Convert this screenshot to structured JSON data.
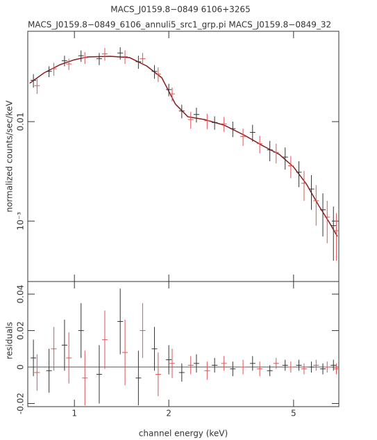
{
  "chart_data": [
    {
      "type": "errorbar",
      "title": "MACS_J0159.8−0849 6106+3265",
      "subtitle": "MACS_J0159.8−0849_6106_annuli5_src1_grp.pi MACS_J0159.8−0849_32",
      "ylabel": "normalized counts/sec/keV",
      "xscale": "log",
      "yscale": "log",
      "xlim": [
        0.71,
        6.97
      ],
      "xticks": [
        1,
        2,
        5
      ],
      "ylim": [
        0.000247,
        0.081
      ],
      "yticks": [
        0.01,
        {
          "value": 0.001,
          "label": "10⁻³"
        }
      ],
      "series": [
        {
          "color": "#333333",
          "x": [
            0.74,
            0.83,
            0.93,
            1.05,
            1.2,
            1.4,
            1.6,
            1.8,
            2.0,
            2.2,
            2.45,
            2.8,
            3.2,
            3.7,
            4.2,
            4.7,
            5.2,
            5.7,
            6.2,
            6.7
          ],
          "values": [
            0.026,
            0.032,
            0.041,
            0.046,
            0.043,
            0.049,
            0.04,
            0.032,
            0.021,
            0.0128,
            0.0118,
            0.0098,
            0.0085,
            0.0078,
            0.0052,
            0.0044,
            0.0031,
            0.0021,
            0.0013,
            0.0009
          ],
          "errors": [
            0.004,
            0.004,
            0.005,
            0.006,
            0.006,
            0.007,
            0.006,
            0.005,
            0.003,
            0.002,
            0.002,
            0.0015,
            0.0015,
            0.0015,
            0.0012,
            0.0011,
            0.0009,
            0.0008,
            0.0006,
            0.0005
          ]
        },
        {
          "color": "#e05050",
          "x": [
            0.76,
            0.86,
            0.96,
            1.08,
            1.25,
            1.45,
            1.65,
            1.85,
            2.05,
            2.35,
            2.65,
            3.0,
            3.45,
            3.9,
            4.4,
            4.9,
            5.4,
            5.9,
            6.4,
            6.85
          ],
          "values": [
            0.023,
            0.034,
            0.038,
            0.044,
            0.048,
            0.045,
            0.043,
            0.03,
            0.019,
            0.0105,
            0.0102,
            0.0095,
            0.0071,
            0.006,
            0.0049,
            0.0036,
            0.0024,
            0.0016,
            0.0011,
            0.0008
          ],
          "errors": [
            0.004,
            0.005,
            0.005,
            0.006,
            0.007,
            0.007,
            0.006,
            0.005,
            0.003,
            0.002,
            0.0018,
            0.0016,
            0.0014,
            0.0012,
            0.0011,
            0.0009,
            0.0008,
            0.0007,
            0.0005,
            0.0004
          ]
        }
      ],
      "model": {
        "color": "#8b1a1a",
        "x": [
          0.72,
          0.8,
          0.9,
          1.0,
          1.1,
          1.3,
          1.5,
          1.7,
          1.9,
          2.1,
          2.3,
          2.6,
          3.0,
          3.5,
          4.0,
          4.5,
          5.0,
          5.5,
          6.0,
          6.5,
          6.9
        ],
        "values": [
          0.0243,
          0.0309,
          0.0374,
          0.0419,
          0.0447,
          0.0454,
          0.044,
          0.0363,
          0.0276,
          0.015,
          0.0112,
          0.0105,
          0.00923,
          0.00725,
          0.00569,
          0.00469,
          0.0035,
          0.00235,
          0.00145,
          0.00097,
          0.0007
        ]
      }
    },
    {
      "type": "errorbar",
      "xlabel": "channel energy (keV)",
      "ylabel": "residuals",
      "xscale": "log",
      "yscale": "linear",
      "xlim": [
        0.71,
        6.97
      ],
      "xticks": [
        1,
        2,
        5
      ],
      "ylim": [
        -0.0217,
        0.0469
      ],
      "yticks": [
        -0.02,
        0,
        0.02,
        0.04
      ],
      "series": [
        {
          "color": "#333333",
          "x": [
            0.74,
            0.83,
            0.93,
            1.05,
            1.2,
            1.4,
            1.6,
            1.8,
            2.0,
            2.2,
            2.45,
            2.8,
            3.2,
            3.7,
            4.2,
            4.7,
            5.2,
            5.7,
            6.2,
            6.7
          ],
          "values": [
            0.005,
            -0.002,
            0.012,
            0.02,
            -0.004,
            0.025,
            -0.006,
            0.01,
            0.004,
            -0.003,
            0.002,
            0.001,
            -0.001,
            0.002,
            -0.002,
            0.001,
            0.001,
            0,
            -0.001,
            0.001
          ],
          "errors": [
            0.01,
            0.012,
            0.014,
            0.015,
            0.016,
            0.018,
            0.015,
            0.012,
            0.008,
            0.005,
            0.005,
            0.004,
            0.004,
            0.004,
            0.003,
            0.003,
            0.003,
            0.003,
            0.003,
            0.003
          ]
        },
        {
          "color": "#e05050",
          "x": [
            0.76,
            0.86,
            0.96,
            1.08,
            1.25,
            1.45,
            1.65,
            1.85,
            2.05,
            2.35,
            2.65,
            3.0,
            3.45,
            3.9,
            4.4,
            4.9,
            5.4,
            5.9,
            6.4,
            6.85
          ],
          "values": [
            -0.003,
            0.01,
            0.005,
            -0.006,
            0.015,
            0.008,
            0.02,
            -0.004,
            0.002,
            0.001,
            -0.002,
            0.002,
            0,
            -0.001,
            0.002,
            0,
            -0.001,
            0.001,
            0,
            -0.001
          ],
          "errors": [
            0.01,
            0.012,
            0.014,
            0.015,
            0.016,
            0.018,
            0.015,
            0.012,
            0.008,
            0.005,
            0.005,
            0.004,
            0.004,
            0.004,
            0.003,
            0.003,
            0.003,
            0.003,
            0.003,
            0.003
          ]
        }
      ]
    }
  ]
}
